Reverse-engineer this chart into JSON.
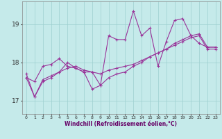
{
  "xlabel": "Windchill (Refroidissement éolien,°C)",
  "x_ticks": [
    0,
    1,
    2,
    3,
    4,
    5,
    6,
    7,
    8,
    9,
    10,
    11,
    12,
    13,
    14,
    15,
    16,
    17,
    18,
    19,
    20,
    21,
    22,
    23
  ],
  "y_ticks": [
    17,
    18,
    19
  ],
  "ylim": [
    16.65,
    19.6
  ],
  "xlim": [
    -0.5,
    23.5
  ],
  "bg_color": "#c5eaea",
  "grid_color": "#9dd0d0",
  "line_color": "#993399",
  "line1": [
    17.7,
    17.1,
    17.5,
    17.6,
    17.75,
    17.85,
    17.9,
    17.8,
    17.75,
    17.4,
    18.7,
    18.6,
    18.6,
    19.35,
    18.7,
    18.9,
    17.9,
    18.55,
    19.1,
    19.15,
    18.7,
    18.5,
    18.4,
    18.4
  ],
  "line2": [
    17.6,
    17.1,
    17.55,
    17.65,
    17.75,
    18.0,
    17.85,
    17.75,
    17.75,
    17.7,
    17.8,
    17.85,
    17.9,
    17.95,
    18.05,
    18.15,
    18.25,
    18.35,
    18.5,
    18.6,
    18.7,
    18.75,
    18.4,
    18.4
  ],
  "line3": [
    17.6,
    17.5,
    17.9,
    17.95,
    18.1,
    17.9,
    17.85,
    17.75,
    17.3,
    17.4,
    17.6,
    17.7,
    17.75,
    17.9,
    18.0,
    18.15,
    18.25,
    18.35,
    18.45,
    18.55,
    18.65,
    18.7,
    18.35,
    18.35
  ],
  "fig_width": 3.2,
  "fig_height": 2.0,
  "dpi": 100
}
